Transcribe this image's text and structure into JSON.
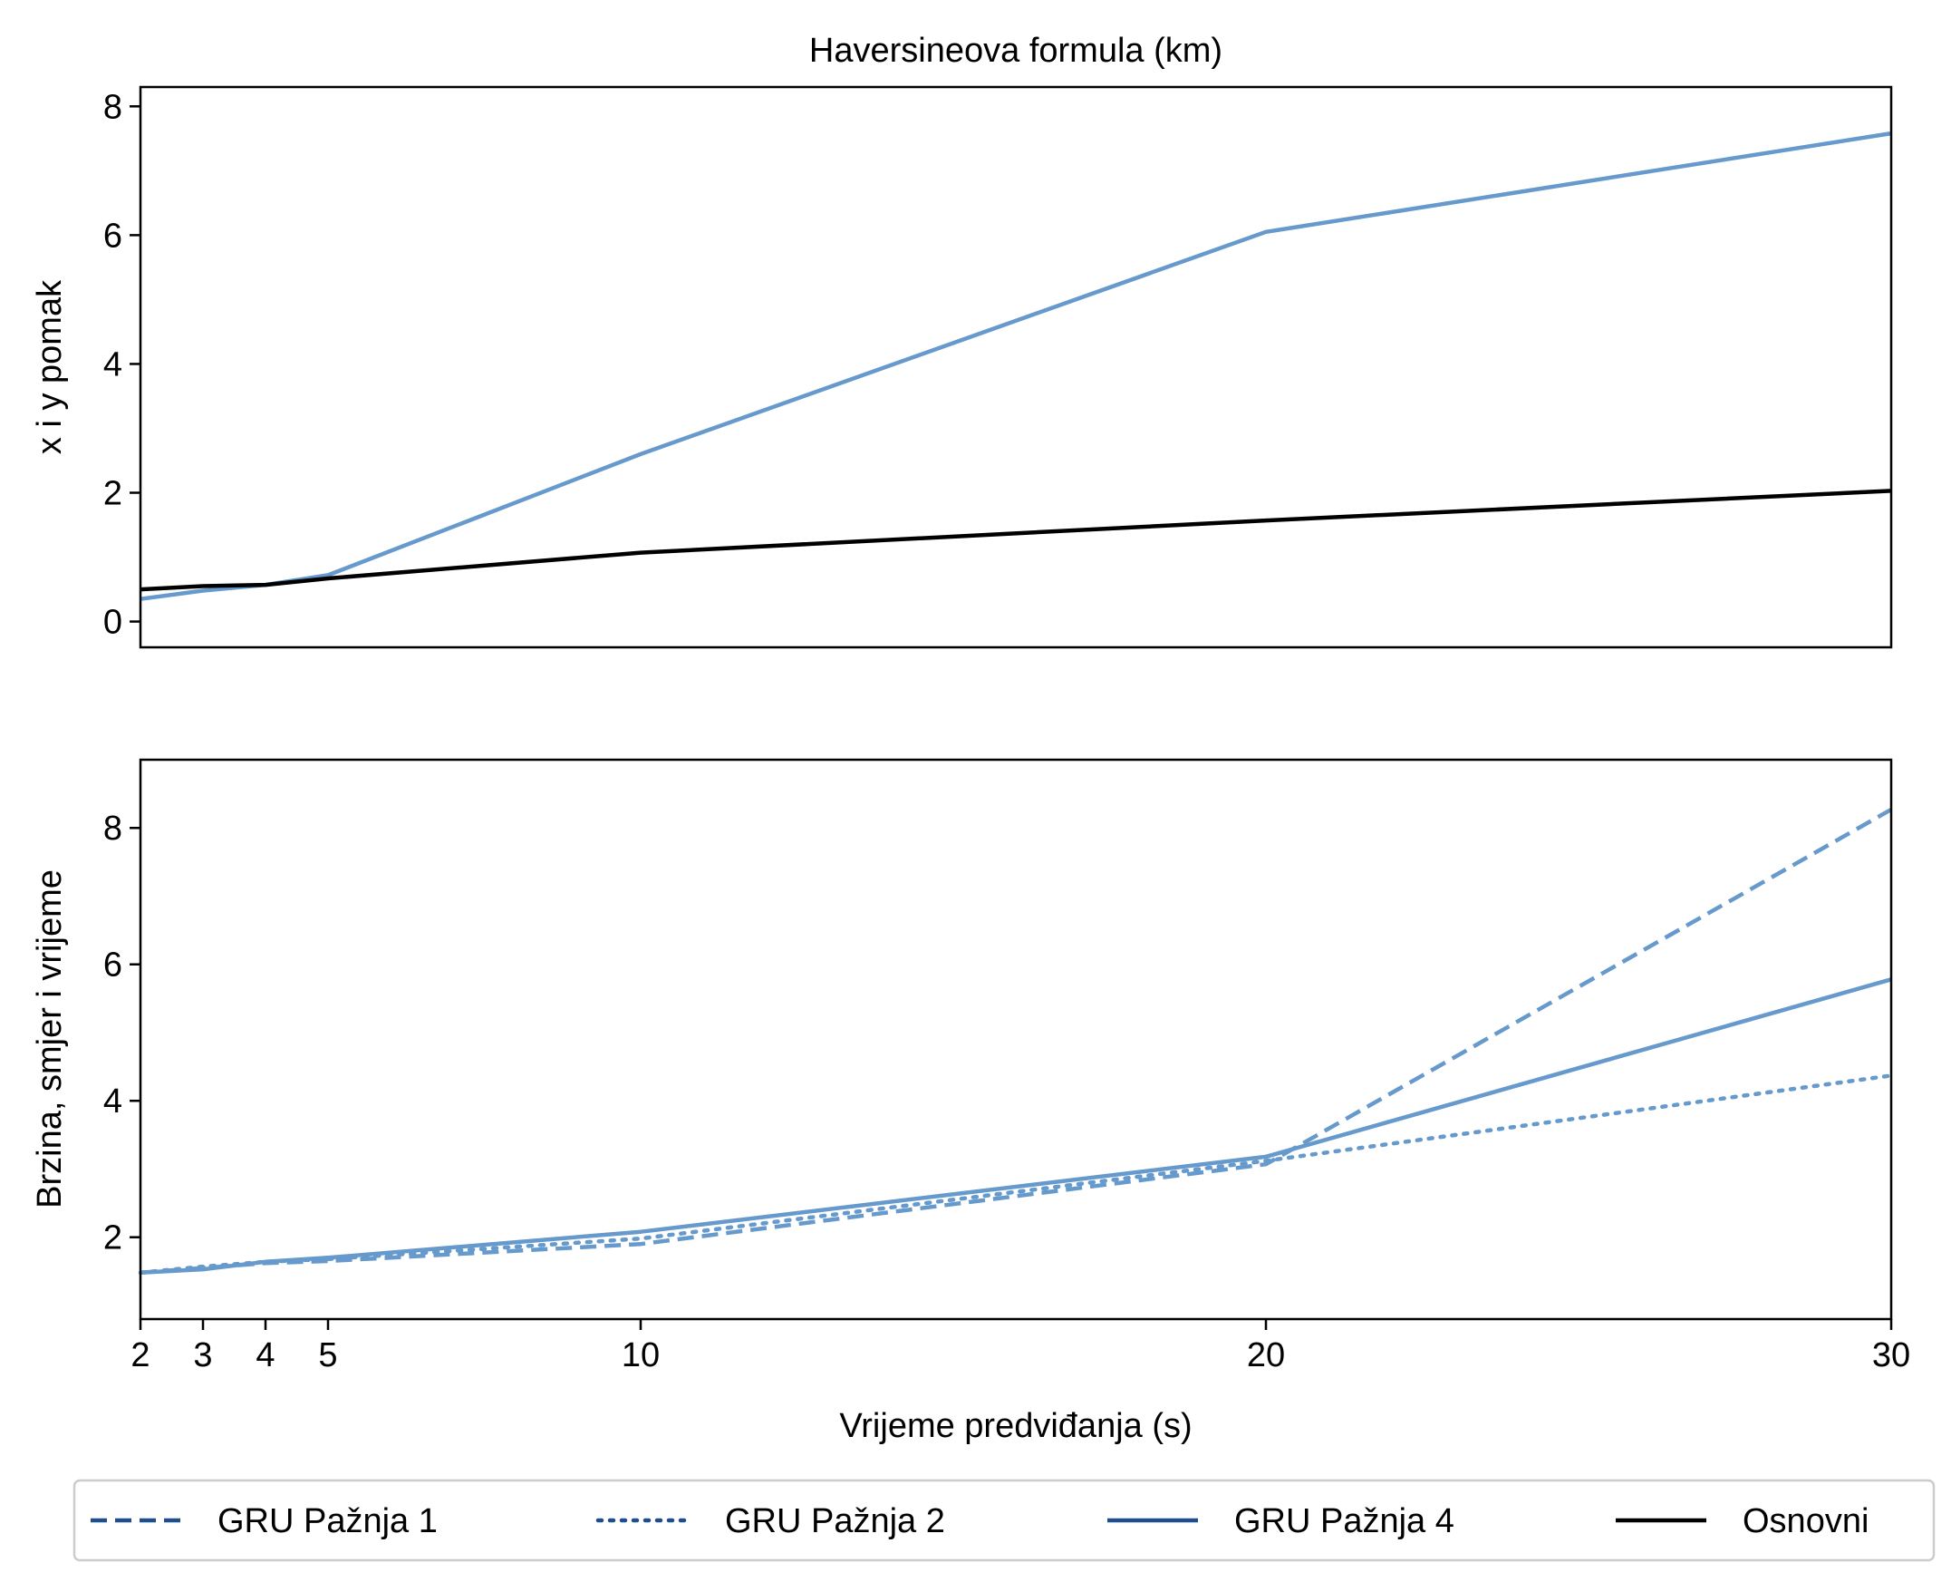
{
  "chart_data": [
    {
      "type": "line",
      "title": "Haversineova formula (km)",
      "xlabel": "",
      "ylabel": "x i y pomak",
      "x": [
        2,
        3,
        4,
        5,
        10,
        20,
        30
      ],
      "xlim": [
        2,
        30
      ],
      "ylim": [
        -0.4,
        8.3
      ],
      "yticks": [
        "0",
        "2",
        "4",
        "6",
        "8"
      ],
      "grid": false,
      "series": [
        {
          "name": "GRU Pažnja 4",
          "style": "solid",
          "color": "#6699cc",
          "values": [
            0.35,
            0.48,
            0.57,
            0.72,
            2.6,
            6.05,
            7.58
          ]
        },
        {
          "name": "Osnovni",
          "style": "solid",
          "color": "#000000",
          "values": [
            0.5,
            0.55,
            0.57,
            0.67,
            1.07,
            1.57,
            2.03
          ]
        }
      ]
    },
    {
      "type": "line",
      "title": "",
      "xlabel": "Vrijeme predviđanja (s)",
      "ylabel": "Brzina, smjer i vrijeme",
      "x": [
        2,
        3,
        4,
        5,
        10,
        20,
        30
      ],
      "xlim": [
        2,
        30
      ],
      "ylim": [
        0.8,
        9.0
      ],
      "xticks": [
        "2",
        "3",
        "4",
        "5",
        "10",
        "20",
        "30"
      ],
      "yticks": [
        "2",
        "4",
        "6",
        "8"
      ],
      "grid": false,
      "series": [
        {
          "name": "GRU Pažnja 1",
          "style": "dashed",
          "color": "#6699cc",
          "values": [
            1.48,
            1.55,
            1.62,
            1.65,
            1.9,
            3.07,
            8.27
          ]
        },
        {
          "name": "GRU Pažnja 2",
          "style": "dotted",
          "color": "#6699cc",
          "values": [
            1.48,
            1.57,
            1.64,
            1.68,
            1.98,
            3.12,
            4.37
          ]
        },
        {
          "name": "GRU Pažnja 4",
          "style": "solid",
          "color": "#6699cc",
          "values": [
            1.48,
            1.53,
            1.64,
            1.7,
            2.08,
            3.18,
            5.78
          ]
        }
      ]
    }
  ],
  "legend": {
    "placement": "bottom",
    "items": [
      {
        "label": "GRU Pažnja 1",
        "style": "dashed",
        "color": "#1f4e8c"
      },
      {
        "label": "GRU Pažnja 2",
        "style": "dotted",
        "color": "#1f4e8c"
      },
      {
        "label": "GRU Pažnja 4",
        "style": "solid",
        "color": "#1f4e8c"
      },
      {
        "label": "Osnovni",
        "style": "solid",
        "color": "#000000"
      }
    ]
  }
}
